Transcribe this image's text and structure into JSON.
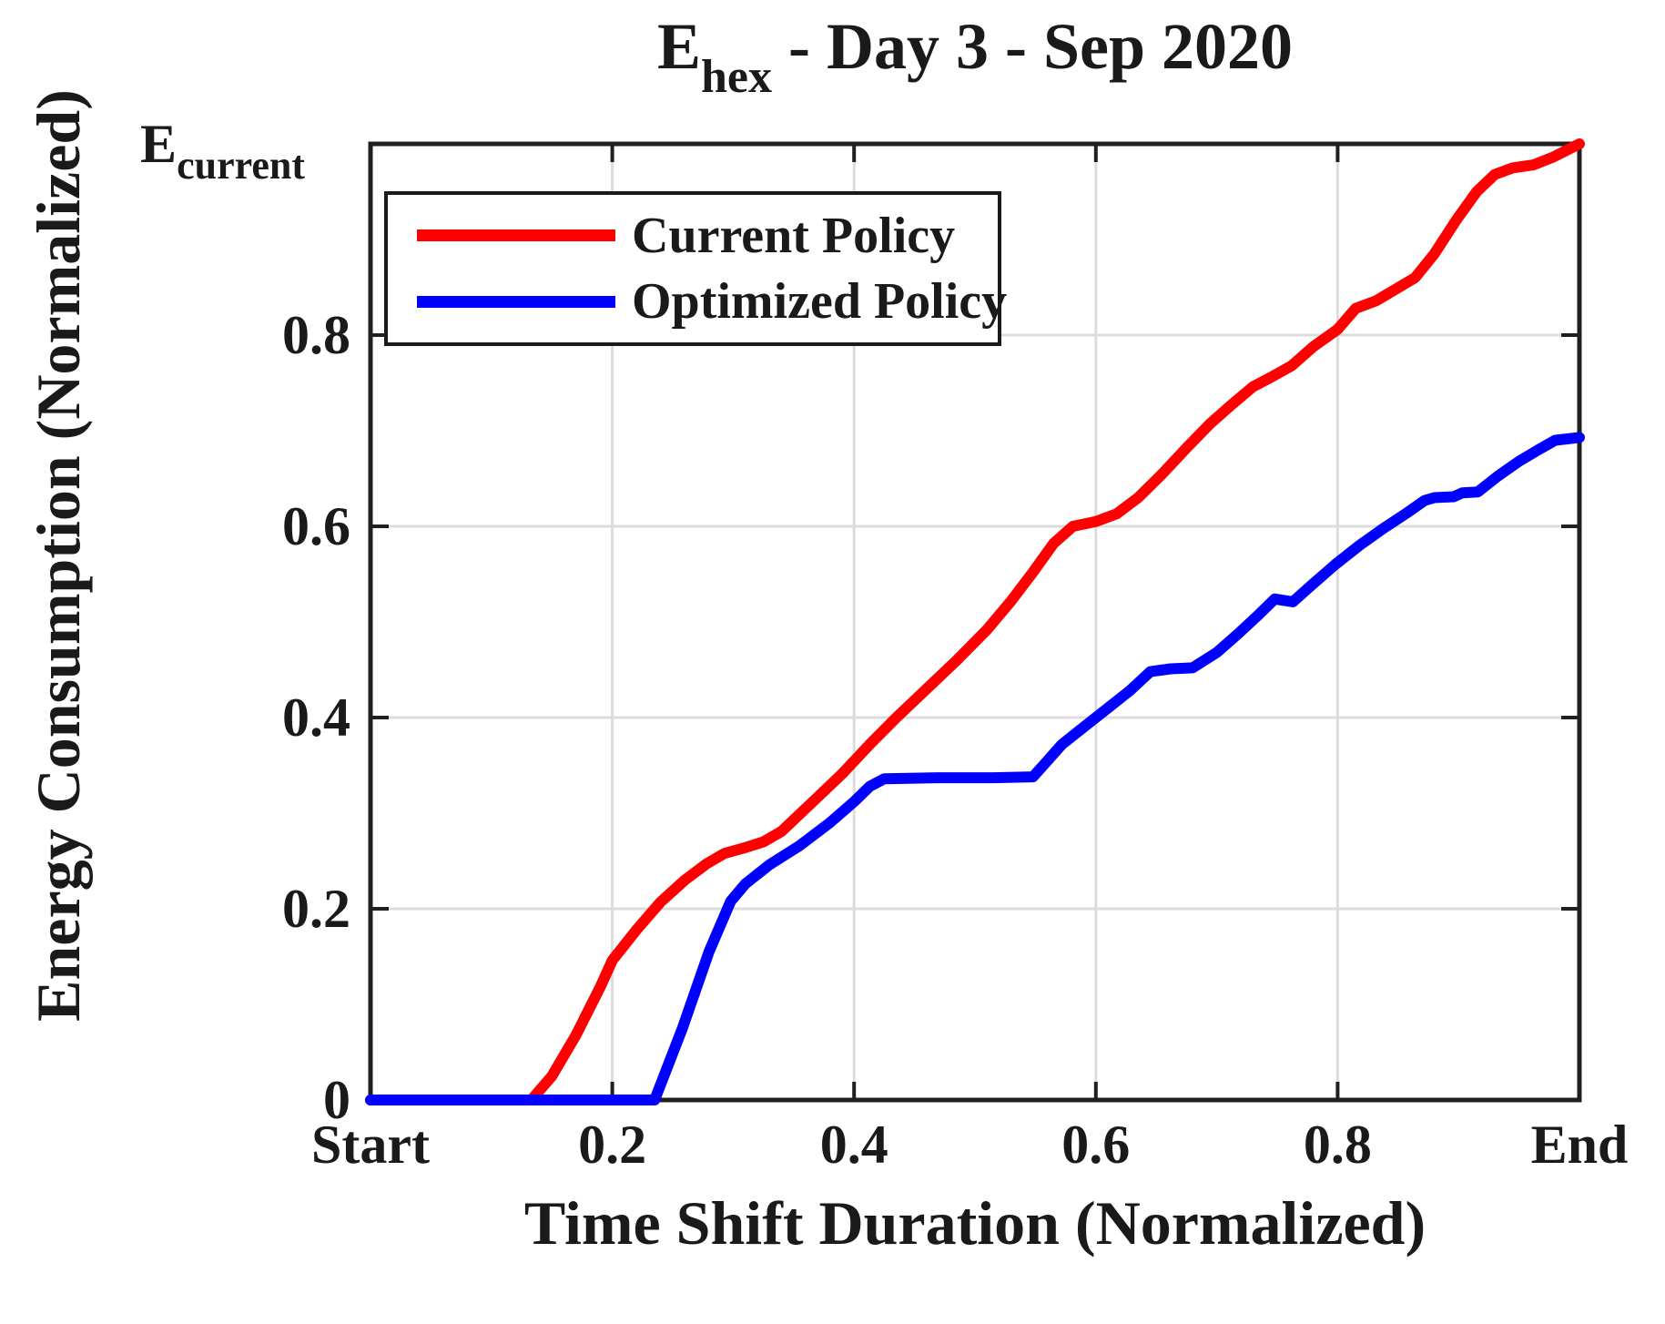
{
  "title": {
    "main": "E",
    "sub": "hex",
    "rest": " - Day 3 - Sep 2020"
  },
  "axes": {
    "xlabel": "Time Shift Duration (Normalized)",
    "ylabel": "Energy Consumption (Normalized)",
    "xticks": [
      {
        "v": 0.0,
        "label": "Start"
      },
      {
        "v": 0.2,
        "label": "0.2"
      },
      {
        "v": 0.4,
        "label": "0.4"
      },
      {
        "v": 0.6,
        "label": "0.6"
      },
      {
        "v": 0.8,
        "label": "0.8"
      },
      {
        "v": 1.0,
        "label": "End"
      }
    ],
    "yticks": [
      {
        "v": 0.0,
        "label": "0"
      },
      {
        "v": 0.2,
        "label": "0.2"
      },
      {
        "v": 0.4,
        "label": "0.4"
      },
      {
        "v": 0.6,
        "label": "0.6"
      },
      {
        "v": 0.8,
        "label": "0.8"
      },
      {
        "v": 1.0,
        "label": "E",
        "sub": "current"
      }
    ]
  },
  "legend": {
    "items": [
      {
        "label": "Current Policy",
        "color": "#FF0000"
      },
      {
        "label": "Optimized Policy",
        "color": "#0000FF"
      }
    ]
  },
  "colors": {
    "grid": "#dcdcdc",
    "frame": "#1f1f1f",
    "text": "#1a1a1a"
  },
  "chart_data": {
    "type": "line",
    "title": "E_hex - Day 3 - Sep 2020",
    "xlabel": "Time Shift Duration (Normalized)",
    "ylabel": "Energy Consumption (Normalized)",
    "xlim": [
      0,
      1
    ],
    "ylim": [
      0,
      1
    ],
    "grid": true,
    "legend_position": "top-left-inside",
    "xtick_labels": [
      "Start",
      "0.2",
      "0.4",
      "0.6",
      "0.8",
      "End"
    ],
    "ytick_labels": [
      "0",
      "0.2",
      "0.4",
      "0.6",
      "0.8",
      "E_current"
    ],
    "series": [
      {
        "name": "Current Policy",
        "color": "#FF0000",
        "points": [
          [
            0.0,
            0.0
          ],
          [
            0.133,
            0.0
          ],
          [
            0.15,
            0.025
          ],
          [
            0.17,
            0.068
          ],
          [
            0.19,
            0.118
          ],
          [
            0.2,
            0.146
          ],
          [
            0.22,
            0.178
          ],
          [
            0.24,
            0.207
          ],
          [
            0.26,
            0.23
          ],
          [
            0.278,
            0.247
          ],
          [
            0.293,
            0.258
          ],
          [
            0.31,
            0.264
          ],
          [
            0.325,
            0.27
          ],
          [
            0.34,
            0.281
          ],
          [
            0.36,
            0.305
          ],
          [
            0.39,
            0.341
          ],
          [
            0.413,
            0.372
          ],
          [
            0.435,
            0.4
          ],
          [
            0.46,
            0.43
          ],
          [
            0.485,
            0.46
          ],
          [
            0.51,
            0.492
          ],
          [
            0.53,
            0.522
          ],
          [
            0.548,
            0.552
          ],
          [
            0.565,
            0.582
          ],
          [
            0.581,
            0.6
          ],
          [
            0.6,
            0.605
          ],
          [
            0.617,
            0.613
          ],
          [
            0.635,
            0.63
          ],
          [
            0.655,
            0.655
          ],
          [
            0.675,
            0.682
          ],
          [
            0.695,
            0.708
          ],
          [
            0.713,
            0.728
          ],
          [
            0.73,
            0.746
          ],
          [
            0.745,
            0.756
          ],
          [
            0.762,
            0.768
          ],
          [
            0.78,
            0.788
          ],
          [
            0.8,
            0.806
          ],
          [
            0.815,
            0.828
          ],
          [
            0.832,
            0.836
          ],
          [
            0.848,
            0.848
          ],
          [
            0.864,
            0.86
          ],
          [
            0.88,
            0.885
          ],
          [
            0.898,
            0.92
          ],
          [
            0.915,
            0.95
          ],
          [
            0.93,
            0.968
          ],
          [
            0.945,
            0.975
          ],
          [
            0.962,
            0.978
          ],
          [
            0.978,
            0.986
          ],
          [
            1.0,
            1.0
          ]
        ]
      },
      {
        "name": "Optimized Policy",
        "color": "#0000FF",
        "points": [
          [
            0.0,
            0.0
          ],
          [
            0.235,
            0.0
          ],
          [
            0.258,
            0.075
          ],
          [
            0.28,
            0.155
          ],
          [
            0.298,
            0.208
          ],
          [
            0.31,
            0.226
          ],
          [
            0.33,
            0.246
          ],
          [
            0.355,
            0.266
          ],
          [
            0.38,
            0.29
          ],
          [
            0.4,
            0.312
          ],
          [
            0.413,
            0.328
          ],
          [
            0.425,
            0.336
          ],
          [
            0.47,
            0.337
          ],
          [
            0.515,
            0.337
          ],
          [
            0.548,
            0.338
          ],
          [
            0.558,
            0.352
          ],
          [
            0.572,
            0.372
          ],
          [
            0.59,
            0.39
          ],
          [
            0.61,
            0.41
          ],
          [
            0.628,
            0.428
          ],
          [
            0.645,
            0.448
          ],
          [
            0.662,
            0.451
          ],
          [
            0.68,
            0.452
          ],
          [
            0.7,
            0.468
          ],
          [
            0.718,
            0.488
          ],
          [
            0.735,
            0.508
          ],
          [
            0.748,
            0.524
          ],
          [
            0.763,
            0.521
          ],
          [
            0.778,
            0.538
          ],
          [
            0.798,
            0.56
          ],
          [
            0.818,
            0.58
          ],
          [
            0.838,
            0.598
          ],
          [
            0.856,
            0.613
          ],
          [
            0.872,
            0.627
          ],
          [
            0.88,
            0.63
          ],
          [
            0.896,
            0.631
          ],
          [
            0.903,
            0.635
          ],
          [
            0.916,
            0.636
          ],
          [
            0.932,
            0.652
          ],
          [
            0.95,
            0.668
          ],
          [
            0.966,
            0.68
          ],
          [
            0.98,
            0.69
          ],
          [
            1.0,
            0.693
          ]
        ]
      }
    ]
  }
}
